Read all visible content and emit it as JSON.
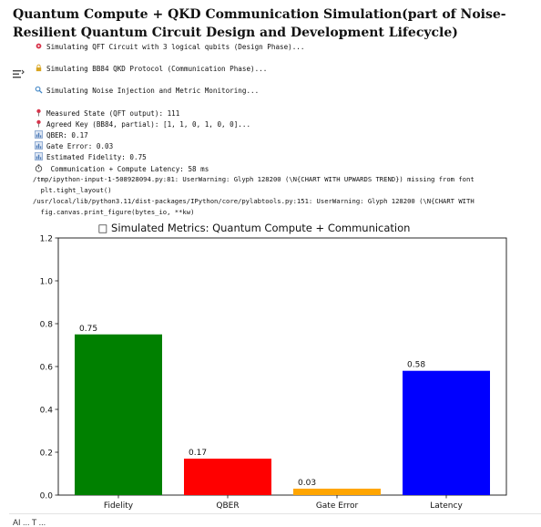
{
  "notebook": {
    "title": "Quantum Compute + QKD Communication Simulation(part of Noise-Resilient Quantum Circuit Design and Development Lifecycle)",
    "gutter_icon": "output-settings-icon",
    "log_lines": [
      {
        "icon": "gear-icon",
        "icon_color": "#d7334a",
        "text": "Simulating QFT Circuit with 3 logical qubits (Design Phase)..."
      },
      {
        "icon": "lock-icon",
        "icon_color": "#d9a520",
        "text": "Simulating BB84 QKD Protocol (Communication Phase)..."
      },
      {
        "icon": "magnifier-icon",
        "icon_color": "#3b82c4",
        "text": "Simulating Noise Injection and Metric Monitoring..."
      }
    ],
    "metric_lines": [
      {
        "icon": "pin-icon",
        "icon_color": "#d7334a",
        "text": "Measured State (QFT output): 111"
      },
      {
        "icon": "pin-icon",
        "icon_color": "#d7334a",
        "text": "Agreed Key (BB84, partial): [1, 1, 0, 1, 0, 0]..."
      },
      {
        "icon": "bar-chart-icon",
        "icon_color": "#4a78b5",
        "text": "QBER: 0.17"
      },
      {
        "icon": "bar-chart-icon",
        "icon_color": "#4a78b5",
        "text": "Gate Error: 0.03"
      },
      {
        "icon": "bar-chart-icon",
        "icon_color": "#4a78b5",
        "text": "Estimated Fidelity: 0.75"
      },
      {
        "icon": "stopwatch-icon",
        "icon_color": "#444444",
        "text": " Communication + Compute Latency: 58 ms"
      }
    ],
    "warnings": [
      "/tmp/ipython-input-1-508928094.py:81: UserWarning: Glyph 128200 (\\N{CHART WITH UPWARDS TREND}) missing from font",
      "  plt.tight_layout()",
      "/usr/local/lib/python3.11/dist-packages/IPython/core/pylabtools.py:151: UserWarning: Glyph 128200 (\\N{CHART WITH",
      "  fig.canvas.print_figure(bytes_io, **kw)"
    ],
    "bottom_text": "AI ... T ..."
  },
  "chart_data": {
    "type": "bar",
    "title": "□ Simulated Metrics: Quantum Compute + Communication",
    "categories": [
      "Fidelity",
      "QBER",
      "Gate Error",
      "Latency"
    ],
    "values": [
      0.75,
      0.17,
      0.03,
      0.58
    ],
    "value_labels": [
      "0.75",
      "0.17",
      "0.03",
      "0.58"
    ],
    "colors": [
      "#008000",
      "#ff0000",
      "#ffa500",
      "#0000ff"
    ],
    "ylim": [
      0,
      1.2
    ],
    "yticks": [
      0.0,
      0.2,
      0.4,
      0.6,
      0.8,
      1.0,
      1.2
    ],
    "ytick_labels": [
      "0.0",
      "0.2",
      "0.4",
      "0.6",
      "0.8",
      "1.0",
      "1.2"
    ],
    "xlabel": "",
    "ylabel": "",
    "grid": false,
    "legend": "none"
  }
}
